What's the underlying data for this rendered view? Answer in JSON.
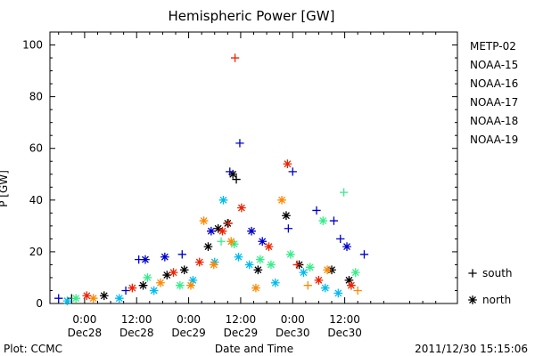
{
  "chart_data": {
    "type": "scatter",
    "title": "Hemispheric Power [GW]",
    "ylabel": "P [GW]",
    "xlabel": "Date and Time",
    "ylim": [
      0,
      105
    ],
    "y_ticks": [
      0,
      20,
      40,
      60,
      80,
      100
    ],
    "x_range_hours": [
      -8,
      86
    ],
    "x_ticks": [
      {
        "hours": 0,
        "label_top": "0:00",
        "label_bottom": "Dec28"
      },
      {
        "hours": 12,
        "label_top": "12:00",
        "label_bottom": "Dec28"
      },
      {
        "hours": 24,
        "label_top": "0:00",
        "label_bottom": "Dec29"
      },
      {
        "hours": 36,
        "label_top": "12:00",
        "label_bottom": "Dec29"
      },
      {
        "hours": 48,
        "label_top": "0:00",
        "label_bottom": "Dec30"
      },
      {
        "hours": 60,
        "label_top": "12:00",
        "label_bottom": "Dec30"
      }
    ],
    "legend": {
      "placement": "right",
      "markers": [
        {
          "symbol": "+",
          "label": "south"
        },
        {
          "symbol": "*",
          "label": "north"
        }
      ]
    },
    "series": [
      {
        "name": "METP-02",
        "color": "#000000",
        "points": [
          {
            "hours": -3.0,
            "value": 2,
            "marker": "+"
          },
          {
            "hours": 4.5,
            "value": 3,
            "marker": "*"
          },
          {
            "hours": 13.5,
            "value": 7,
            "marker": "*"
          },
          {
            "hours": 19.0,
            "value": 11,
            "marker": "*"
          },
          {
            "hours": 23.0,
            "value": 13,
            "marker": "*"
          },
          {
            "hours": 28.5,
            "value": 22,
            "marker": "*"
          },
          {
            "hours": 30.8,
            "value": 29,
            "marker": "*"
          },
          {
            "hours": 33.0,
            "value": 31,
            "marker": "*"
          },
          {
            "hours": 34.2,
            "value": 50,
            "marker": "*"
          },
          {
            "hours": 35.0,
            "value": 48,
            "marker": "+"
          },
          {
            "hours": 40.0,
            "value": 13,
            "marker": "*"
          },
          {
            "hours": 46.5,
            "value": 34,
            "marker": "*"
          },
          {
            "hours": 49.5,
            "value": 15,
            "marker": "*"
          },
          {
            "hours": 57.0,
            "value": 13,
            "marker": "*"
          },
          {
            "hours": 61.0,
            "value": 9,
            "marker": "*"
          }
        ]
      },
      {
        "name": "NOAA-15",
        "color": "#0000cc",
        "points": [
          {
            "hours": -6.0,
            "value": 2,
            "marker": "+"
          },
          {
            "hours": 9.5,
            "value": 5,
            "marker": "+"
          },
          {
            "hours": 12.5,
            "value": 17,
            "marker": "+"
          },
          {
            "hours": 14.0,
            "value": 17,
            "marker": "*"
          },
          {
            "hours": 18.5,
            "value": 18,
            "marker": "*"
          },
          {
            "hours": 22.5,
            "value": 19,
            "marker": "+"
          },
          {
            "hours": 29.2,
            "value": 28,
            "marker": "*"
          },
          {
            "hours": 33.5,
            "value": 51,
            "marker": "+"
          },
          {
            "hours": 35.8,
            "value": 62,
            "marker": "+"
          },
          {
            "hours": 38.5,
            "value": 28,
            "marker": "*"
          },
          {
            "hours": 41.0,
            "value": 24,
            "marker": "*"
          },
          {
            "hours": 47.0,
            "value": 29,
            "marker": "+"
          },
          {
            "hours": 48.0,
            "value": 51,
            "marker": "+"
          },
          {
            "hours": 53.5,
            "value": 36,
            "marker": "+"
          },
          {
            "hours": 57.5,
            "value": 32,
            "marker": "+"
          },
          {
            "hours": 59.0,
            "value": 25,
            "marker": "+"
          },
          {
            "hours": 60.5,
            "value": 22,
            "marker": "*"
          },
          {
            "hours": 64.5,
            "value": 19,
            "marker": "+"
          }
        ]
      },
      {
        "name": "NOAA-16",
        "color": "#00bbee",
        "points": [
          {
            "hours": -4.0,
            "value": 1,
            "marker": "*"
          },
          {
            "hours": 8.0,
            "value": 2,
            "marker": "*"
          },
          {
            "hours": 16.0,
            "value": 5,
            "marker": "*"
          },
          {
            "hours": 25.0,
            "value": 9,
            "marker": "*"
          },
          {
            "hours": 30.0,
            "value": 16,
            "marker": "*"
          },
          {
            "hours": 32.0,
            "value": 40,
            "marker": "*"
          },
          {
            "hours": 35.5,
            "value": 18,
            "marker": "*"
          },
          {
            "hours": 38.0,
            "value": 15,
            "marker": "*"
          },
          {
            "hours": 44.0,
            "value": 8,
            "marker": "*"
          },
          {
            "hours": 50.5,
            "value": 12,
            "marker": "*"
          },
          {
            "hours": 55.5,
            "value": 6,
            "marker": "*"
          },
          {
            "hours": 58.5,
            "value": 4,
            "marker": "*"
          }
        ]
      },
      {
        "name": "NOAA-17",
        "color": "#33ee88",
        "points": [
          {
            "hours": -2.0,
            "value": 2,
            "marker": "*"
          },
          {
            "hours": 14.5,
            "value": 10,
            "marker": "*"
          },
          {
            "hours": 22.0,
            "value": 7,
            "marker": "*"
          },
          {
            "hours": 31.5,
            "value": 24,
            "marker": "+"
          },
          {
            "hours": 34.5,
            "value": 23,
            "marker": "*"
          },
          {
            "hours": 40.5,
            "value": 17,
            "marker": "*"
          },
          {
            "hours": 43.0,
            "value": 15,
            "marker": "*"
          },
          {
            "hours": 47.5,
            "value": 19,
            "marker": "*"
          },
          {
            "hours": 52.0,
            "value": 14,
            "marker": "*"
          },
          {
            "hours": 55.0,
            "value": 32,
            "marker": "*"
          },
          {
            "hours": 59.8,
            "value": 43,
            "marker": "+"
          },
          {
            "hours": 62.5,
            "value": 12,
            "marker": "*"
          }
        ]
      },
      {
        "name": "NOAA-18",
        "color": "#ff8800",
        "points": [
          {
            "hours": 2.0,
            "value": 2,
            "marker": "*"
          },
          {
            "hours": 17.5,
            "value": 8,
            "marker": "*"
          },
          {
            "hours": 24.5,
            "value": 7,
            "marker": "*"
          },
          {
            "hours": 27.5,
            "value": 32,
            "marker": "*"
          },
          {
            "hours": 29.8,
            "value": 15,
            "marker": "*"
          },
          {
            "hours": 33.8,
            "value": 24,
            "marker": "*"
          },
          {
            "hours": 39.5,
            "value": 6,
            "marker": "*"
          },
          {
            "hours": 45.5,
            "value": 40,
            "marker": "*"
          },
          {
            "hours": 51.5,
            "value": 7,
            "marker": "+"
          },
          {
            "hours": 56.0,
            "value": 13,
            "marker": "*"
          },
          {
            "hours": 63.0,
            "value": 5,
            "marker": "+"
          }
        ]
      },
      {
        "name": "NOAA-19",
        "color": "#ee2200",
        "points": [
          {
            "hours": 0.5,
            "value": 3,
            "marker": "*"
          },
          {
            "hours": 11.0,
            "value": 6,
            "marker": "*"
          },
          {
            "hours": 20.5,
            "value": 12,
            "marker": "*"
          },
          {
            "hours": 26.5,
            "value": 16,
            "marker": "*"
          },
          {
            "hours": 31.8,
            "value": 28,
            "marker": "*"
          },
          {
            "hours": 33.2,
            "value": 31,
            "marker": "+"
          },
          {
            "hours": 34.7,
            "value": 95,
            "marker": "+"
          },
          {
            "hours": 36.2,
            "value": 37,
            "marker": "*"
          },
          {
            "hours": 42.5,
            "value": 22,
            "marker": "*"
          },
          {
            "hours": 46.8,
            "value": 54,
            "marker": "*"
          },
          {
            "hours": 49.0,
            "value": 15,
            "marker": "+"
          },
          {
            "hours": 54.0,
            "value": 9,
            "marker": "*"
          },
          {
            "hours": 61.5,
            "value": 7,
            "marker": "*"
          }
        ]
      }
    ]
  },
  "footer": {
    "left": "Plot: CCMC",
    "right": "2011/12/30 15:15:06"
  }
}
